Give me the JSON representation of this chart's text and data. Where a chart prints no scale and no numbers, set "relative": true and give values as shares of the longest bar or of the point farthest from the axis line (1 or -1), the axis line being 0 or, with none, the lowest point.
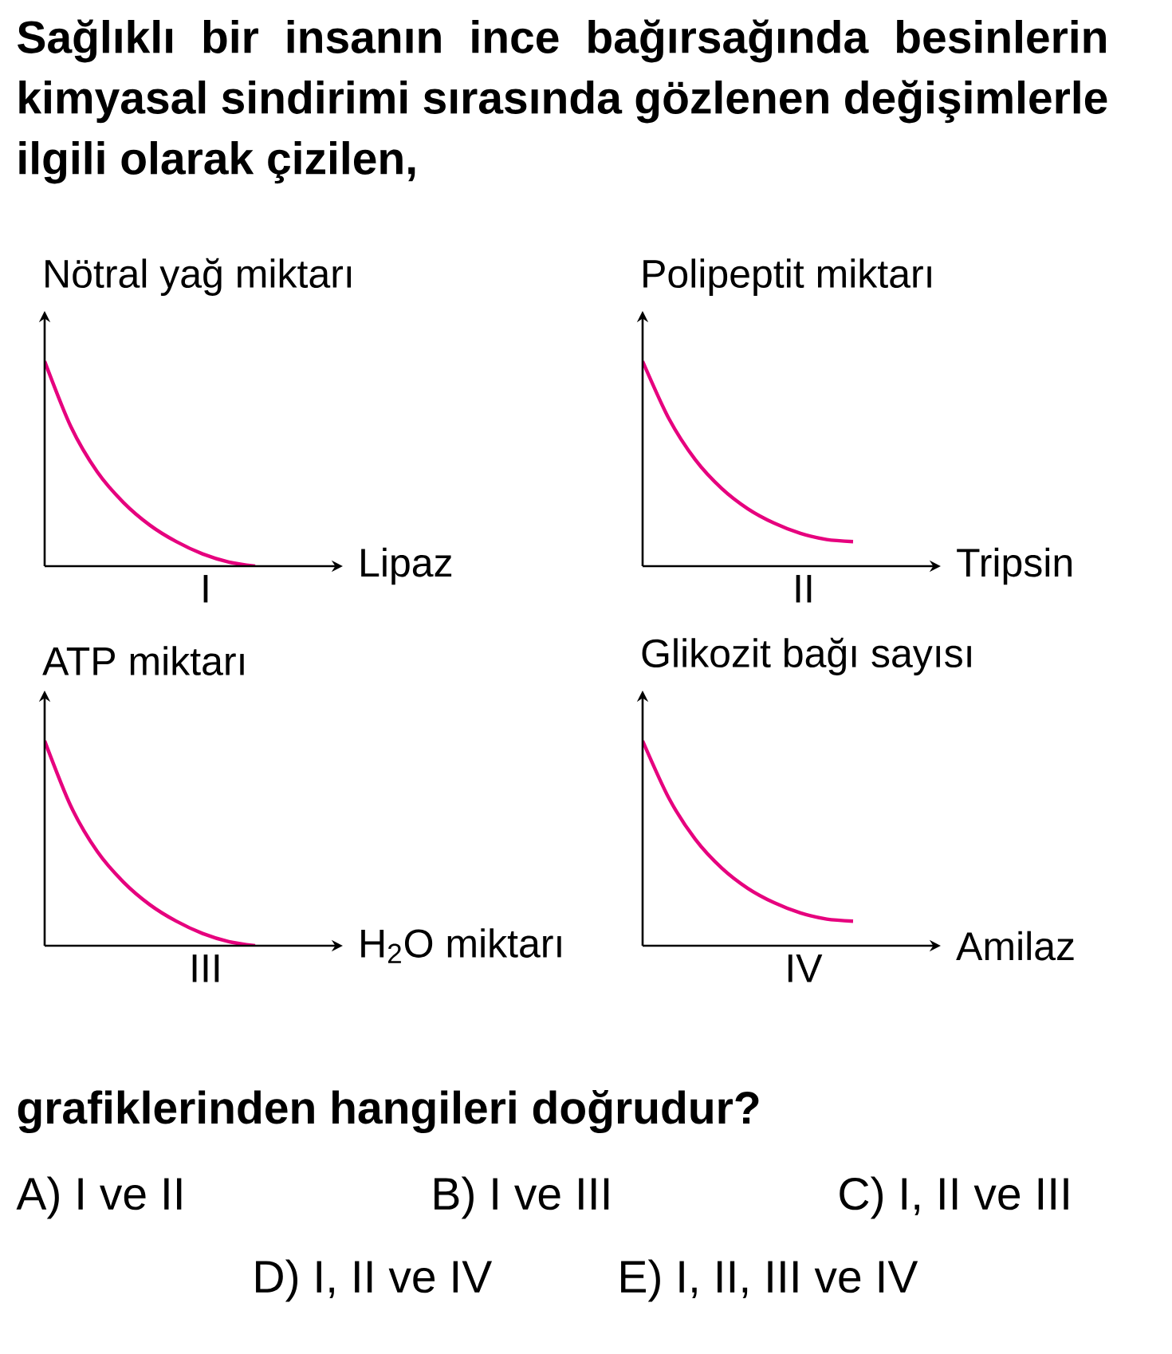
{
  "chart_data": [
    {
      "type": "other",
      "title": "Sağlıklı bir insanın ince bağırsağında besinlerin kimyasal sindirimi sırasında gözlenen değişimlerle ilgili olarak çizilen,"
    },
    {
      "type": "line",
      "relative": true,
      "title": "I",
      "ylabel": "Nötral yağ miktarı",
      "xlabel": "Lipaz",
      "color": "#e6007e",
      "categories": [
        null,
        null,
        null,
        null,
        null,
        null,
        null,
        null,
        null
      ],
      "values": [
        1,
        0.68,
        0.46,
        0.31,
        0.2,
        0.12,
        0.06,
        0.02,
        0
      ]
    },
    {
      "type": "line",
      "relative": true,
      "title": "II",
      "ylabel": "Polipeptit miktarı",
      "xlabel": "Tripsin",
      "color": "#e6007e",
      "categories": [
        null,
        null,
        null,
        null,
        null,
        null,
        null,
        null,
        null
      ],
      "values": [
        1,
        0.72,
        0.52,
        0.38,
        0.28,
        0.21,
        0.16,
        0.13,
        0.12
      ]
    },
    {
      "type": "line",
      "relative": true,
      "title": "III",
      "ylabel": "ATP miktarı",
      "xlabel": "H$_{2}$O miktarı",
      "color": "#e6007e",
      "categories": [
        null,
        null,
        null,
        null,
        null,
        null,
        null,
        null,
        null
      ],
      "values": [
        1,
        0.68,
        0.46,
        0.31,
        0.2,
        0.12,
        0.06,
        0.02,
        0
      ]
    },
    {
      "type": "line",
      "relative": true,
      "title": "IV",
      "ylabel": "Glikozit bağı sayısı",
      "xlabel": "Amilaz",
      "color": "#e6007e",
      "categories": [
        null,
        null,
        null,
        null,
        null,
        null,
        null,
        null,
        null
      ],
      "values": [
        1,
        0.72,
        0.52,
        0.38,
        0.28,
        0.21,
        0.16,
        0.13,
        0.12
      ]
    },
    {
      "type": "other",
      "annotations": [
        "grafiklerinden hangileri doğrudur?",
        "A) I ve II",
        "B) I ve III",
        "C) I, II ve III",
        "D) I, II ve IV",
        "E) I, II, III ve IV"
      ]
    }
  ]
}
